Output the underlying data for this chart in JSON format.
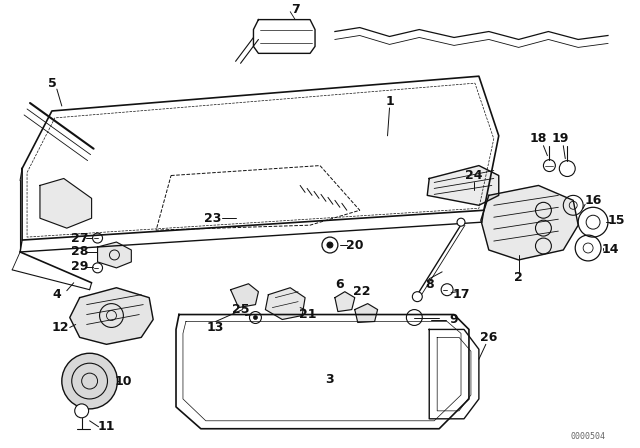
{
  "bg_color": "#ffffff",
  "line_color": "#111111",
  "watermark": "0000504",
  "figsize": [
    6.4,
    4.48
  ],
  "dpi": 100
}
